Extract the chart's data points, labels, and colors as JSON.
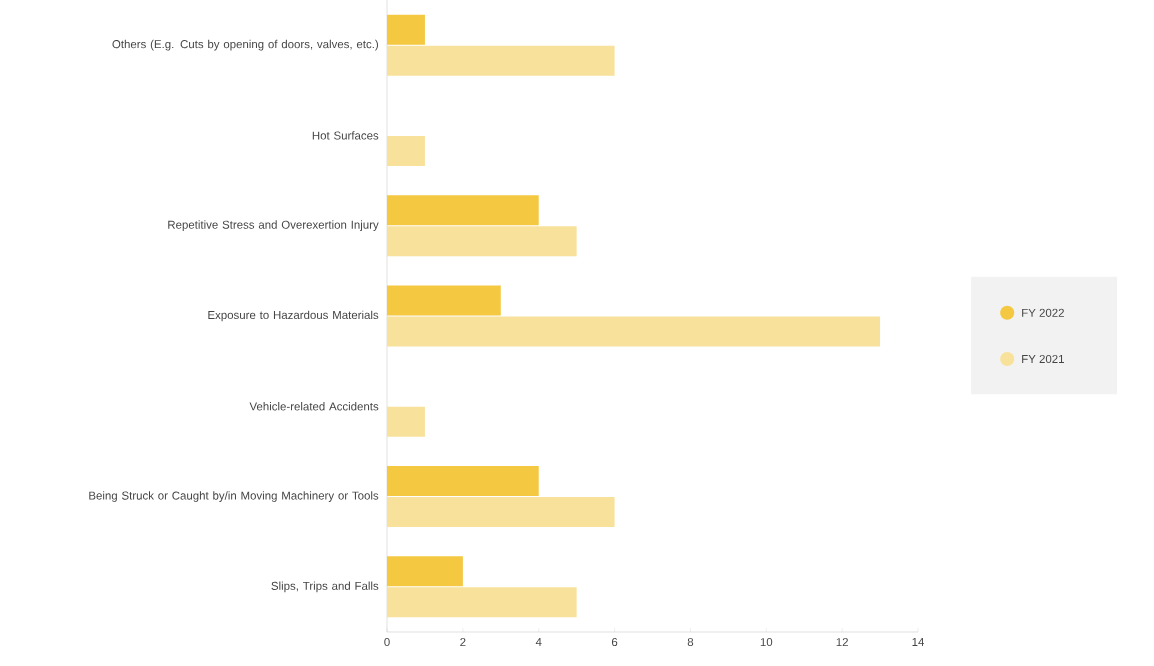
{
  "chart_data": {
    "type": "bar",
    "orientation": "horizontal",
    "categories": [
      "Others (E.g. Cuts by opening of doors, valves, etc.)",
      "Hot Surfaces",
      "Repetitive Stress and Overexertion Injury",
      "Exposure to Hazardous Materials",
      "Vehicle-related Accidents",
      "Being Struck or Caught by/in Moving Machinery or Tools",
      "Slips, Trips and Falls"
    ],
    "series": [
      {
        "name": "FY 2022",
        "color": "#f5c842",
        "values": [
          1,
          null,
          4,
          3,
          null,
          4,
          2
        ]
      },
      {
        "name": "FY 2021",
        "color": "#f8e29b",
        "values": [
          6,
          1,
          5,
          13,
          1,
          6,
          5
        ]
      }
    ],
    "xlim": [
      0,
      14
    ],
    "xticks": [
      0,
      2,
      4,
      6,
      8,
      10,
      12,
      14
    ],
    "grid": false,
    "legend": "right"
  }
}
